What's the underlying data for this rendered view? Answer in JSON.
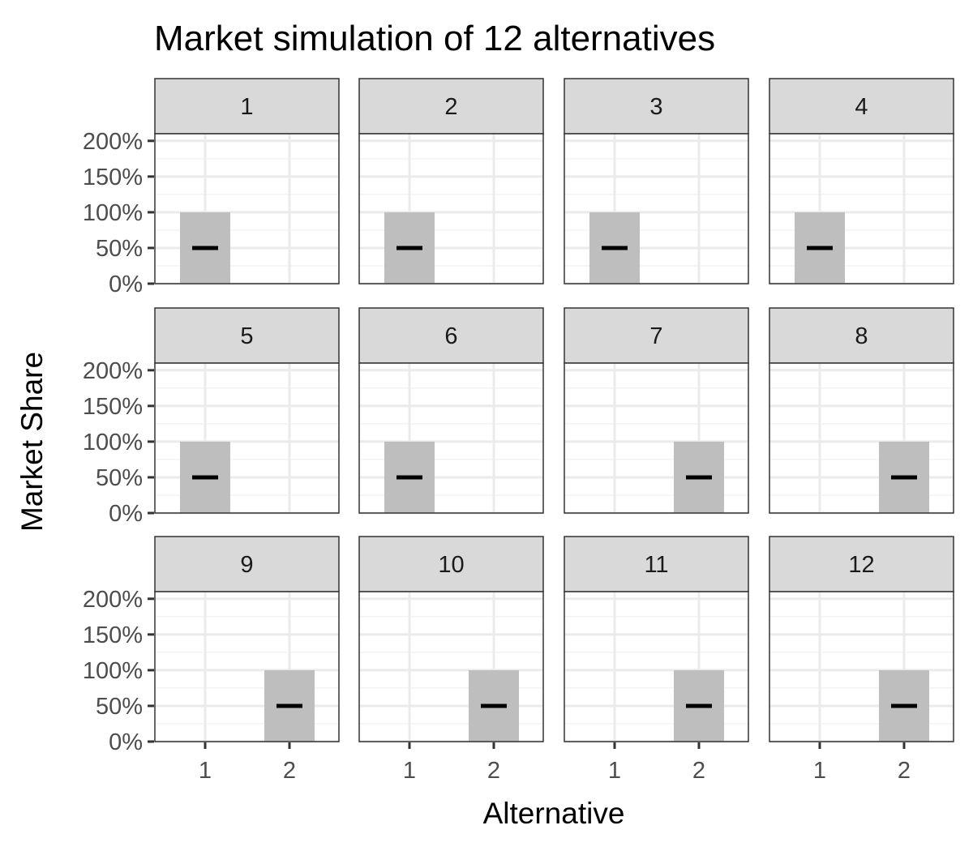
{
  "chart_data": {
    "type": "bar",
    "title": "Market simulation of 12 alternatives",
    "xlabel": "Alternative",
    "ylabel": "Market Share",
    "layout": "facet-grid 3 rows x 4 columns",
    "categories": [
      "1",
      "2"
    ],
    "x_ticks": [
      "1",
      "2"
    ],
    "y_ticks": [
      "0%",
      "50%",
      "100%",
      "150%",
      "200%"
    ],
    "ylim": [
      0,
      2.1
    ],
    "grid": true,
    "bar_color": "#bebebe",
    "point_color": "#000000",
    "strip_color": "#d9d9d9",
    "panels": [
      {
        "label": "1",
        "alternative": "1",
        "ymin": 0,
        "ymax": 1,
        "y": 0.5
      },
      {
        "label": "2",
        "alternative": "1",
        "ymin": 0,
        "ymax": 1,
        "y": 0.5
      },
      {
        "label": "3",
        "alternative": "1",
        "ymin": 0,
        "ymax": 1,
        "y": 0.5
      },
      {
        "label": "4",
        "alternative": "1",
        "ymin": 0,
        "ymax": 1,
        "y": 0.5
      },
      {
        "label": "5",
        "alternative": "1",
        "ymin": 0,
        "ymax": 1,
        "y": 0.5
      },
      {
        "label": "6",
        "alternative": "1",
        "ymin": 0,
        "ymax": 1,
        "y": 0.5
      },
      {
        "label": "7",
        "alternative": "2",
        "ymin": 0,
        "ymax": 1,
        "y": 0.5
      },
      {
        "label": "8",
        "alternative": "2",
        "ymin": 0,
        "ymax": 1,
        "y": 0.5
      },
      {
        "label": "9",
        "alternative": "2",
        "ymin": 0,
        "ymax": 1,
        "y": 0.5
      },
      {
        "label": "10",
        "alternative": "2",
        "ymin": 0,
        "ymax": 1,
        "y": 0.5
      },
      {
        "label": "11",
        "alternative": "2",
        "ymin": 0,
        "ymax": 1,
        "y": 0.5
      },
      {
        "label": "12",
        "alternative": "2",
        "ymin": 0,
        "ymax": 1,
        "y": 0.5
      }
    ]
  }
}
